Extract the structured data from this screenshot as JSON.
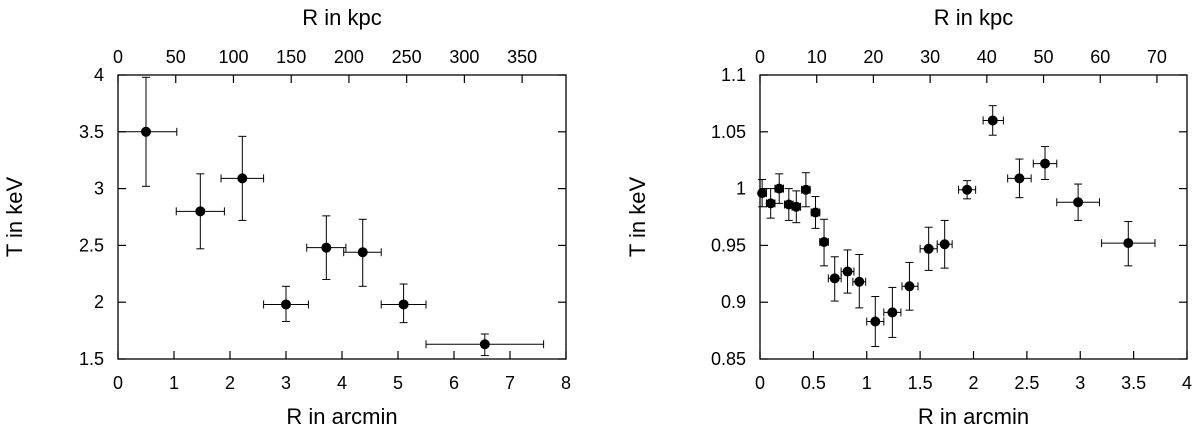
{
  "chart_data": [
    {
      "type": "scatter",
      "xlabel": "R in arcmin",
      "x2label": "R in kpc",
      "ylabel": "T in keV",
      "xlim": [
        0,
        8
      ],
      "ylim": [
        1.5,
        4
      ],
      "x_ticks": [
        "0",
        "1",
        "2",
        "3",
        "4",
        "5",
        "6",
        "7",
        "8"
      ],
      "x2lim": [
        0,
        388
      ],
      "x2_ticks": [
        "0",
        "50",
        "100",
        "150",
        "200",
        "250",
        "300",
        "350"
      ],
      "y_ticks": [
        "1.5",
        "2",
        "2.5",
        "3",
        "3.5",
        "4"
      ],
      "grid": false,
      "points": [
        {
          "x": 0.5,
          "x_lo": 0.0,
          "x_hi": 1.05,
          "y": 3.5,
          "y_lo": 3.02,
          "y_hi": 3.98
        },
        {
          "x": 1.47,
          "x_lo": 1.04,
          "x_hi": 1.9,
          "y": 2.8,
          "y_lo": 2.47,
          "y_hi": 3.13
        },
        {
          "x": 2.22,
          "x_lo": 1.84,
          "x_hi": 2.6,
          "y": 3.09,
          "y_lo": 2.72,
          "y_hi": 3.46
        },
        {
          "x": 3.0,
          "x_lo": 2.6,
          "x_hi": 3.4,
          "y": 1.98,
          "y_lo": 1.83,
          "y_hi": 2.14
        },
        {
          "x": 3.72,
          "x_lo": 3.37,
          "x_hi": 4.07,
          "y": 2.48,
          "y_lo": 2.2,
          "y_hi": 2.76
        },
        {
          "x": 4.37,
          "x_lo": 4.03,
          "x_hi": 4.7,
          "y": 2.44,
          "y_lo": 2.14,
          "y_hi": 2.73
        },
        {
          "x": 5.1,
          "x_lo": 4.7,
          "x_hi": 5.5,
          "y": 1.98,
          "y_lo": 1.82,
          "y_hi": 2.16
        },
        {
          "x": 6.55,
          "x_lo": 5.5,
          "x_hi": 7.6,
          "y": 1.63,
          "y_lo": 1.53,
          "y_hi": 1.72
        }
      ]
    },
    {
      "type": "scatter",
      "xlabel": "R in arcmin",
      "x2label": "R in kpc",
      "ylabel": "T in keV",
      "xlim": [
        0,
        4
      ],
      "ylim": [
        0.85,
        1.1
      ],
      "x_ticks": [
        "0",
        "0.5",
        "1",
        "1.5",
        "2",
        "2.5",
        "3",
        "3.5",
        "4"
      ],
      "x2lim": [
        0,
        75.3
      ],
      "x2_ticks": [
        "0",
        "10",
        "20",
        "30",
        "40",
        "50",
        "60",
        "70"
      ],
      "y_ticks": [
        "0.85",
        "0.9",
        "0.95",
        "1",
        "1.05",
        "1.1"
      ],
      "grid": false,
      "points": [
        {
          "x": 0.02,
          "x_lo": 0.0,
          "x_hi": 0.06,
          "y": 0.996,
          "y_lo": 0.984,
          "y_hi": 1.008
        },
        {
          "x": 0.1,
          "x_lo": 0.06,
          "x_hi": 0.14,
          "y": 0.987,
          "y_lo": 0.974,
          "y_hi": 1.0
        },
        {
          "x": 0.18,
          "x_lo": 0.14,
          "x_hi": 0.22,
          "y": 1.0,
          "y_lo": 0.987,
          "y_hi": 1.013
        },
        {
          "x": 0.27,
          "x_lo": 0.23,
          "x_hi": 0.31,
          "y": 0.986,
          "y_lo": 0.972,
          "y_hi": 1.0
        },
        {
          "x": 0.34,
          "x_lo": 0.3,
          "x_hi": 0.38,
          "y": 0.984,
          "y_lo": 0.97,
          "y_hi": 0.998
        },
        {
          "x": 0.43,
          "x_lo": 0.39,
          "x_hi": 0.47,
          "y": 0.999,
          "y_lo": 0.984,
          "y_hi": 1.014
        },
        {
          "x": 0.52,
          "x_lo": 0.48,
          "x_hi": 0.56,
          "y": 0.979,
          "y_lo": 0.965,
          "y_hi": 0.993
        },
        {
          "x": 0.6,
          "x_lo": 0.56,
          "x_hi": 0.64,
          "y": 0.953,
          "y_lo": 0.932,
          "y_hi": 0.973
        },
        {
          "x": 0.7,
          "x_lo": 0.64,
          "x_hi": 0.76,
          "y": 0.921,
          "y_lo": 0.901,
          "y_hi": 0.94
        },
        {
          "x": 0.82,
          "x_lo": 0.76,
          "x_hi": 0.88,
          "y": 0.927,
          "y_lo": 0.908,
          "y_hi": 0.946
        },
        {
          "x": 0.93,
          "x_lo": 0.87,
          "x_hi": 0.99,
          "y": 0.918,
          "y_lo": 0.895,
          "y_hi": 0.942
        },
        {
          "x": 1.08,
          "x_lo": 1.0,
          "x_hi": 1.16,
          "y": 0.883,
          "y_lo": 0.861,
          "y_hi": 0.905
        },
        {
          "x": 1.24,
          "x_lo": 1.16,
          "x_hi": 1.32,
          "y": 0.891,
          "y_lo": 0.869,
          "y_hi": 0.913
        },
        {
          "x": 1.4,
          "x_lo": 1.33,
          "x_hi": 1.48,
          "y": 0.914,
          "y_lo": 0.893,
          "y_hi": 0.935
        },
        {
          "x": 1.58,
          "x_lo": 1.5,
          "x_hi": 1.66,
          "y": 0.947,
          "y_lo": 0.928,
          "y_hi": 0.966
        },
        {
          "x": 1.73,
          "x_lo": 1.66,
          "x_hi": 1.8,
          "y": 0.951,
          "y_lo": 0.93,
          "y_hi": 0.972
        },
        {
          "x": 1.94,
          "x_lo": 1.86,
          "x_hi": 2.02,
          "y": 0.999,
          "y_lo": 0.991,
          "y_hi": 1.007
        },
        {
          "x": 2.18,
          "x_lo": 2.09,
          "x_hi": 2.28,
          "y": 1.06,
          "y_lo": 1.047,
          "y_hi": 1.073
        },
        {
          "x": 2.43,
          "x_lo": 2.32,
          "x_hi": 2.54,
          "y": 1.009,
          "y_lo": 0.992,
          "y_hi": 1.026
        },
        {
          "x": 2.67,
          "x_lo": 2.56,
          "x_hi": 2.78,
          "y": 1.022,
          "y_lo": 1.008,
          "y_hi": 1.037
        },
        {
          "x": 2.98,
          "x_lo": 2.78,
          "x_hi": 3.18,
          "y": 0.988,
          "y_lo": 0.972,
          "y_hi": 1.004
        },
        {
          "x": 3.45,
          "x_lo": 3.2,
          "x_hi": 3.7,
          "y": 0.952,
          "y_lo": 0.932,
          "y_hi": 0.971
        }
      ]
    }
  ]
}
